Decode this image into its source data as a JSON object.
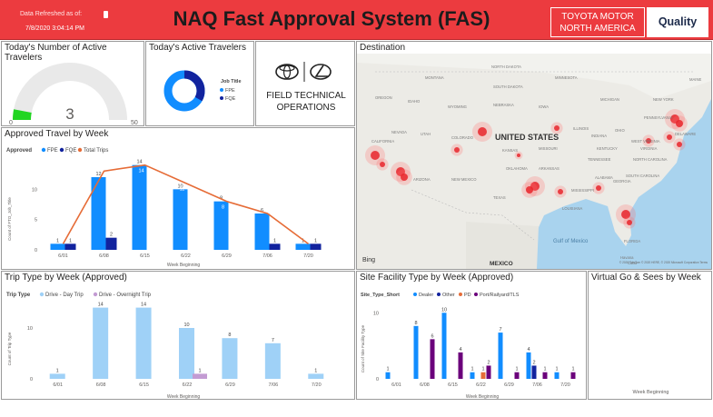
{
  "header": {
    "refresh_label": "Data Refreshed as of:",
    "refresh_date": "7/8/2020 3:04:14 PM",
    "title": "NAQ Fast Approval System (FAS)",
    "toyota_line1": "TOYOTA MOTOR",
    "toyota_line2": "NORTH AMERICA",
    "quality": "Quality",
    "bg_color": "#ec3b3f"
  },
  "active_count": {
    "title": "Today's Number of Active Travelers",
    "value": "3",
    "min": "0",
    "max": "50",
    "gauge_value": 3,
    "gauge_min": 0,
    "gauge_max": 50,
    "fill_color": "#21d521"
  },
  "active_donut": {
    "title": "Today's Active Travelers",
    "legend_title": "Job Title",
    "legend": [
      {
        "label": "FPE",
        "color": "#118dff"
      },
      {
        "label": "FQE",
        "color": "#12239e"
      }
    ],
    "values": [
      2,
      1
    ]
  },
  "logo": {
    "line1": "FIELD TECHNICAL",
    "line2": "OPERATIONS",
    "icons": [
      "toyota-emblem-icon",
      "lexus-emblem-icon"
    ]
  },
  "destination": {
    "title": "Destination",
    "country_label": "UNITED STATES",
    "mexico_label": "MEXICO",
    "gulf_label": "Gulf of Mexico",
    "bing": "Bing",
    "copyright": "© 2020 TomTom © 2020 HERE, © 2020 Microsoft Corporation Terms",
    "states": [
      "MONTANA",
      "NORTH DAKOTA",
      "MINNESOTA",
      "SOUTH DAKOTA",
      "WYOMING",
      "NEBRASKA",
      "IOWA",
      "MICHIGAN",
      "NEVADA",
      "UTAH",
      "COLORADO",
      "KANSAS",
      "MISSOURI",
      "ILLINOIS",
      "INDIANA",
      "OHIO",
      "PENNSYLVANIA",
      "NEW YORK",
      "CALIFORNIA",
      "ARIZONA",
      "NEW MEXICO",
      "OKLAHOMA",
      "ARKANSAS",
      "TENNESSEE",
      "KENTUCKY",
      "VIRGINIA",
      "WEST VIRGINIA",
      "NORTH CAROLINA",
      "SOUTH CAROLINA",
      "GEORGIA",
      "ALABAMA",
      "MISSISSIPPI",
      "LOUISIANA",
      "TEXAS",
      "FLORIDA",
      "OREGON",
      "IDAHO",
      "DELAWARE",
      "MAINE",
      "Havana",
      "Cuba"
    ]
  },
  "approved": {
    "title": "Approved Travel by Week",
    "legend_title": "Approved",
    "legend": [
      {
        "label": "FPE",
        "color": "#118dff"
      },
      {
        "label": "FQE",
        "color": "#12239e"
      },
      {
        "label": "Total Trips",
        "color": "#e66c37"
      }
    ],
    "ylabel": "Count of FTO_Job_Title",
    "xlabel": "Week Beginning"
  },
  "trip": {
    "title": "Trip Type by Week (Approved)",
    "legend_title": "Trip Type",
    "legend": [
      {
        "label": "Drive - Day Trip",
        "color": "#9fd1f7"
      },
      {
        "label": "Drive - Overnight Trip",
        "color": "#c39bd3"
      }
    ],
    "ylabel": "Count of Trip Type",
    "xlabel": "Week Beginning"
  },
  "site": {
    "title": "Site Facility Type by Week (Approved)",
    "legend_title": "Site_Type_Short",
    "legend": [
      {
        "label": "Dealer",
        "color": "#118dff"
      },
      {
        "label": "Other",
        "color": "#12239e"
      },
      {
        "label": "PD",
        "color": "#e66c37"
      },
      {
        "label": "Port/Railyard/TLS",
        "color": "#6b007b"
      }
    ],
    "ylabel": "Count of Site Facility Type",
    "xlabel": "Week Beginning"
  },
  "virtual": {
    "title": "Virtual Go & Sees by Week",
    "xlabel": "Week Beginning"
  },
  "chart_data": [
    {
      "type": "bar",
      "title": "Approved Travel by Week",
      "categories": [
        "6/01",
        "6/08",
        "6/15",
        "6/22",
        "6/29",
        "7/06",
        "7/20"
      ],
      "series": [
        {
          "name": "FPE",
          "values": [
            1,
            12,
            14,
            10,
            8,
            6,
            1
          ]
        },
        {
          "name": "FQE",
          "values": [
            1,
            2,
            14,
            11,
            8,
            1,
            1
          ]
        },
        {
          "name": "Total Trips",
          "values": [
            1,
            13,
            14,
            11,
            8,
            6,
            1
          ]
        }
      ],
      "bar_labels_fpe": [
        "1",
        "12",
        "14",
        "10",
        "8",
        "6",
        "1"
      ],
      "bar_labels_fqe": [
        "1",
        "2",
        "14",
        "11",
        "8",
        "1",
        "1"
      ],
      "ylabel": "Count of FTO_Job_Title",
      "xlabel": "Week Beginning",
      "yticks": [
        0,
        5,
        10
      ],
      "ylim": [
        0,
        15
      ]
    },
    {
      "type": "bar",
      "title": "Trip Type by Week (Approved)",
      "categories": [
        "6/01",
        "6/08",
        "6/15",
        "6/22",
        "6/29",
        "7/06",
        "7/20"
      ],
      "series": [
        {
          "name": "Drive - Day Trip",
          "values": [
            1,
            14,
            14,
            10,
            8,
            7,
            1
          ]
        },
        {
          "name": "Drive - Overnight Trip",
          "values": [
            0,
            0,
            0,
            1,
            0,
            0,
            0
          ]
        }
      ],
      "ylabel": "Count of Trip Type",
      "xlabel": "Week Beginning",
      "yticks": [
        0,
        10
      ],
      "ylim": [
        0,
        15
      ]
    },
    {
      "type": "bar",
      "title": "Site Facility Type by Week (Approved)",
      "categories": [
        "6/01",
        "6/08",
        "6/15",
        "6/22",
        "6/29",
        "7/06",
        "7/20"
      ],
      "series": [
        {
          "name": "Dealer",
          "values": [
            1,
            8,
            10,
            1,
            7,
            4,
            1
          ]
        },
        {
          "name": "Other",
          "values": [
            0,
            0,
            0,
            0,
            0,
            2,
            0
          ]
        },
        {
          "name": "PD",
          "values": [
            0,
            0,
            0,
            1,
            0,
            0,
            0
          ]
        },
        {
          "name": "Port/Railyard/TLS",
          "values": [
            0,
            6,
            4,
            2,
            1,
            1,
            1
          ]
        }
      ],
      "ylabel": "Count of Site Facility Type",
      "xlabel": "Week Beginning",
      "yticks": [
        0,
        10
      ],
      "ylim": [
        0,
        11
      ]
    }
  ]
}
